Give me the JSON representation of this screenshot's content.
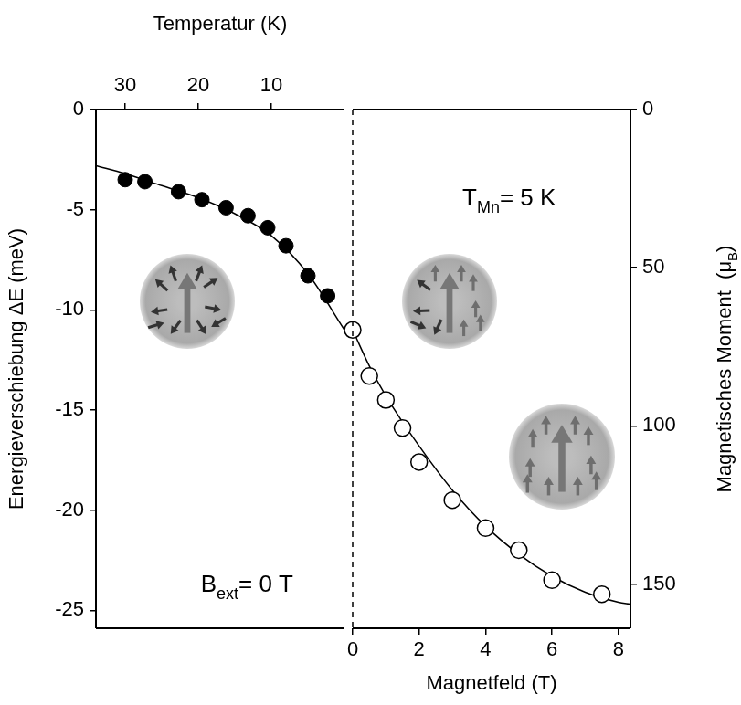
{
  "chart_data": {
    "type": "scatter",
    "x_label": "Magnetfeld (T)",
    "x2_label": "Temperatur (K)",
    "y_label": "Energieverschiebung ΔE (meV)",
    "y2_label": {
      "text": "Magnetisches Moment  (μ",
      "sub": "B",
      "after": ")"
    },
    "xlim": [
      0,
      8.36
    ],
    "xticks": [
      0,
      2,
      4,
      6,
      8
    ],
    "x2lim": [
      34,
      0
    ],
    "x2ticks": [
      30,
      20,
      10
    ],
    "ylim": [
      -25.9,
      0
    ],
    "yticks": [
      0,
      -5,
      -10,
      -15,
      -20,
      -25
    ],
    "y2lim": [
      164,
      0
    ],
    "y2ticks": [
      0,
      50,
      100,
      150
    ],
    "grid": false,
    "annotations": [
      {
        "text": "T",
        "sub": "Mn",
        "after": "= 5 K"
      },
      {
        "text": "B",
        "sub": "ext",
        "after": "= 0 T",
        "axis": "x2"
      }
    ],
    "series": [
      {
        "axis": "x2",
        "type": "scatter",
        "marker": "filled",
        "color": "#000000",
        "x": [
          30,
          27.3,
          22.7,
          19.5,
          16.2,
          13.2,
          10.5,
          8,
          5,
          2.3
        ],
        "values": [
          -3.5,
          -3.6,
          -4.1,
          -4.5,
          -4.9,
          -5.3,
          -5.9,
          -6.8,
          -8.3,
          -9.3
        ]
      },
      {
        "axis": "x2",
        "type": "line",
        "marker": "none",
        "color": "#000000",
        "x": [
          34,
          30,
          25,
          20,
          15,
          10,
          5,
          0
        ],
        "values": [
          -2.8,
          -3.2,
          -3.8,
          -4.4,
          -5.2,
          -6.3,
          -8.2,
          -11
        ]
      },
      {
        "type": "scatter",
        "marker": "open",
        "color": "#000000",
        "x": [
          0,
          0.5,
          1,
          1.5,
          2,
          3,
          4,
          5,
          6,
          7.5
        ],
        "values": [
          -11,
          -13.3,
          -14.5,
          -15.9,
          -17.6,
          -19.5,
          -20.9,
          -22,
          -23.5,
          -24.2
        ]
      },
      {
        "type": "line",
        "marker": "none",
        "color": "#000000",
        "x": [
          0,
          0.5,
          1,
          2,
          3,
          4,
          5,
          6,
          7,
          8,
          8.36
        ],
        "values": [
          -11,
          -12.8,
          -14.3,
          -16.8,
          -19,
          -20.8,
          -22.2,
          -23.3,
          -24.1,
          -24.6,
          -24.7
        ]
      }
    ]
  }
}
